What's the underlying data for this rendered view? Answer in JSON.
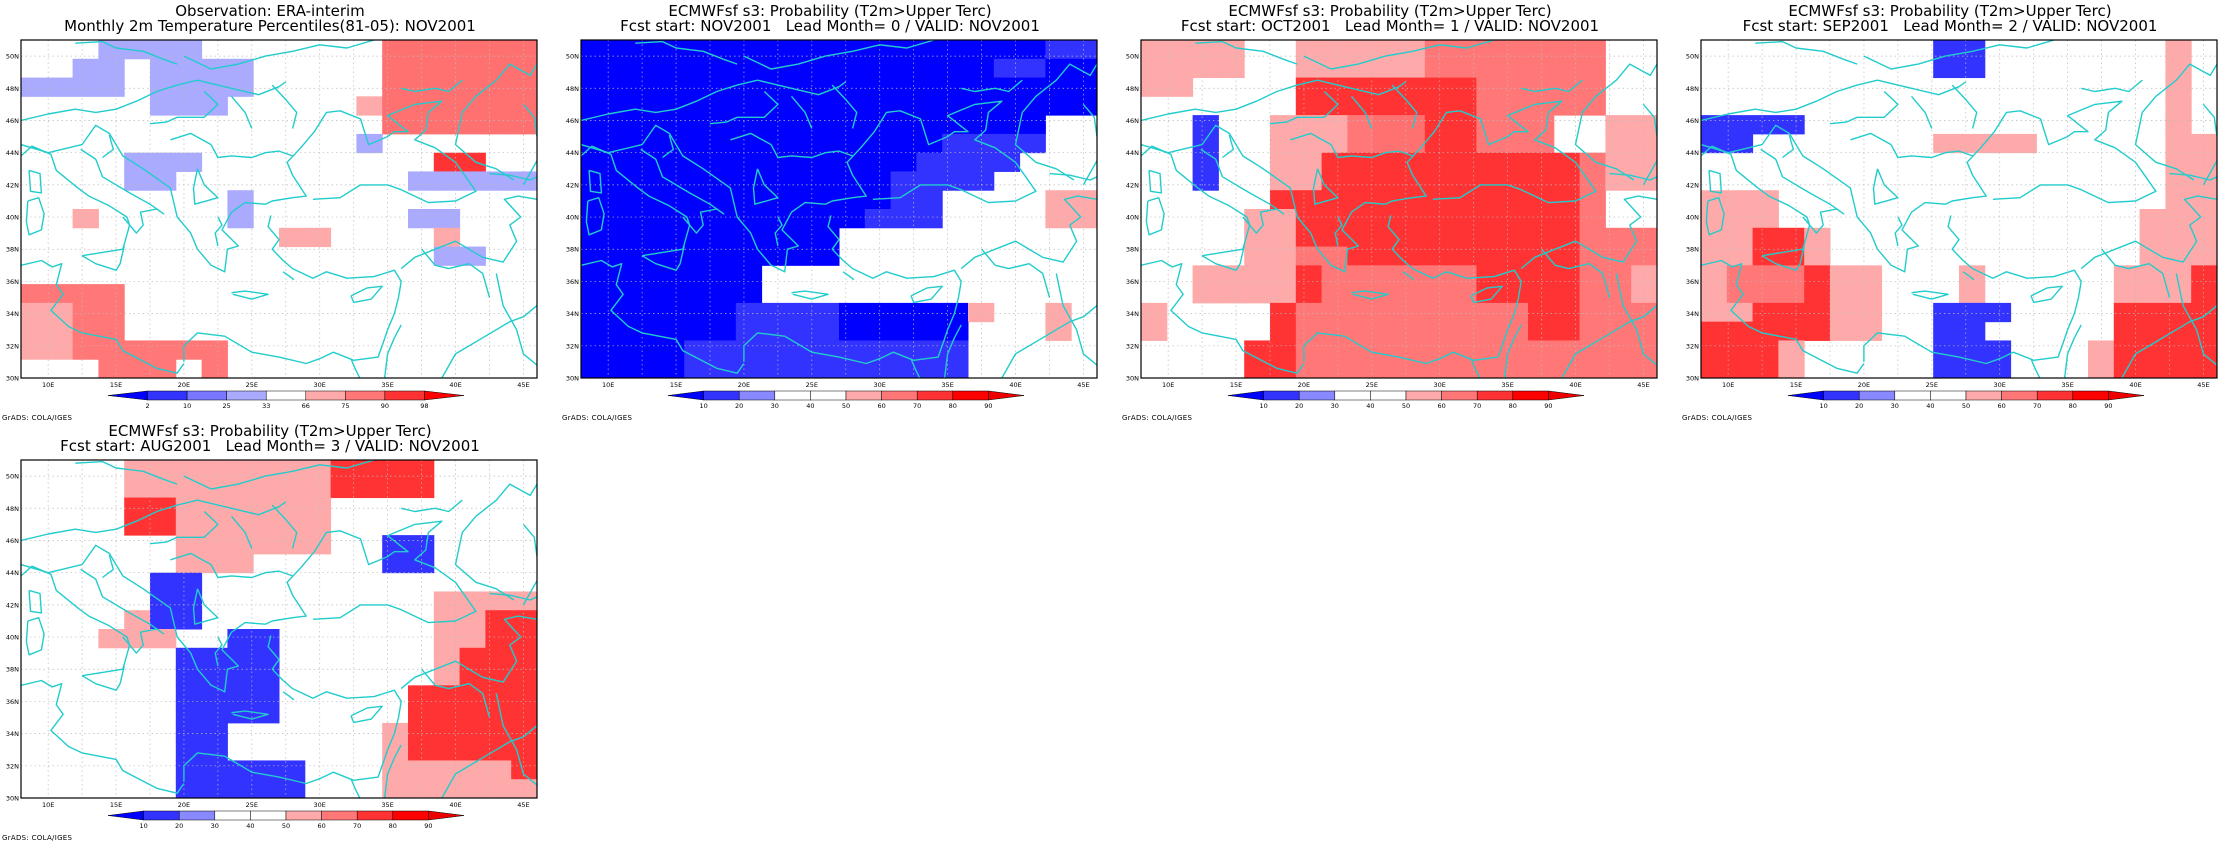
{
  "lat_labels": [
    "30N",
    "32N",
    "34N",
    "36N",
    "38N",
    "40N",
    "42N",
    "44N",
    "46N",
    "48N",
    "50N"
  ],
  "lon_labels": [
    "10E",
    "15E",
    "20E",
    "25E",
    "30E",
    "35E",
    "40E",
    "45E"
  ],
  "coast_color": "#22cccc",
  "grads_credit": "GrADS: COLA/IGES",
  "panels": [
    {
      "id": "obs",
      "title1": "Observation: ERA-interim",
      "title2": "Monthly 2m Temperature Percentiles(81-05): NOV2001",
      "legend_labels": [
        "2",
        "10",
        "25",
        "33",
        "66",
        "75",
        "90",
        "98"
      ],
      "legend_colors": [
        "#0000ff",
        "#3333ff",
        "#7777ff",
        "#aaaaff",
        "#ffffff",
        "#ffaaaa",
        "#ff7777",
        "#ff3333",
        "#ff0000"
      ],
      "rows": [
        "...BBBB.......RRRRRR",
        "..BB.BBBB.....RRRRRR",
        "BBBB.BBBB.....RRRRRR",
        ".....BBB.....SRRRRRR",
        "..............RRRRRR",
        ".............B......",
        "....BBB.........LL..",
        "....BB.........BBBBB",
        "........B...........",
        "..S.....B......BB...",
        "..........SS....S...",
        "................BB..",
        "....................",
        "TTTT................",
        "SSTT................",
        "SSTT................",
        "SSTTTTTT............",
        "...TTT.T............"
      ]
    },
    {
      "id": "lead0",
      "title1": "ECMWFsf s3: Probability (T2m>Upper Terc)",
      "title2": "Fcst start: NOV2001   Lead Month= 0 / VALID: NOV2001",
      "legend_labels": [
        "10",
        "20",
        "30",
        "40",
        "50",
        "60",
        "70",
        "80",
        "90"
      ],
      "legend_colors": [
        "#0000ff",
        "#3333ff",
        "#8888ff",
        "#ffffff",
        "#ffffff",
        "#ffaaaa",
        "#ff7777",
        "#ff3333",
        "#ff0000",
        "#ee0000"
      ],
      "rows": [
        "XXXXXXXXXXXXXXXXXXYY",
        "XXXXXXXXXXXXXXXXYYXX",
        "XXXXXXXXXXXXXXXXXXXX",
        "XXXXXXXXXXXXXXXXXXXX",
        "XXXXXXXXXXXXXXXXXX..",
        "XXXXXXXXXXXXXXYYYY..",
        "XXXXXXXXXXXXXYYYY...",
        "XXXXXXXXXXXXYYYY....",
        "XXXXXXXXXXXXYY....SS",
        "XXXXXXXXXXXYYY....SS",
        "XXXXXXXXXX..........",
        "XXXXXXXXXX..........",
        "XXXXXXX.............",
        "XXXXXXX.............",
        "XXXXXXYYYYXXXXXS..S.",
        "XXXXXXYYYYXXXXX...S.",
        "XXXXYYYYYYYYYYY.....",
        "XXXXYYYYYYYYYYY....."
      ]
    },
    {
      "id": "lead1",
      "title1": "ECMWFsf s3: Probability (T2m>Upper Terc)",
      "title2": "Fcst start: OCT2001   Lead Month= 1 / VALID: NOV2001",
      "legend_labels": [
        "10",
        "20",
        "30",
        "40",
        "50",
        "60",
        "70",
        "80",
        "90"
      ],
      "legend_colors": [
        "#0000ff",
        "#3333ff",
        "#8888ff",
        "#ffffff",
        "#ffffff",
        "#ffaaaa",
        "#ff7777",
        "#ff3333",
        "#ff0000",
        "#ee0000"
      ],
      "rows": [
        "SSSS..SSSSSTTTTTTT..",
        "SSSS..SSSSSTTTTTTT..",
        "SS....LLLLLLLTTTTT..",
        "......LLLLLLLTTTTT..",
        "..Y..SSSTRRLLTTT..SS",
        "..Y..SSSTRRLLTTT..SS",
        "..Y..SSLLLLLLLLLLTSS",
        "..Y..SSLLLLLLLLLLTSS",
        ".....LLLLLLLLLLLLT..",
        "....SSLLLLLLLLLLLT..",
        "....SSLLLLLLLLLLLTTT",
        "....SSTTLLLLLLLLLTTT",
        "..SSSSLTTTTTTLLLLTTS",
        "..SSSSLTTTTTTLLLLTTS",
        "S....LTTTTTTTTTLLTTT",
        "S....LTTTTTTTTTLLTTT",
        "....LLTTTTTTTTTTTTTT",
        "....LLTTTTTTTTTTTTTT"
      ]
    },
    {
      "id": "lead2",
      "title1": "ECMWFsf s3: Probability (T2m>Upper Terc)",
      "title2": "Fcst start: SEP2001   Lead Month= 2 / VALID: NOV2001",
      "legend_labels": [
        "10",
        "20",
        "30",
        "40",
        "50",
        "60",
        "70",
        "80",
        "90"
      ],
      "legend_colors": [
        "#0000ff",
        "#3333ff",
        "#8888ff",
        "#ffffff",
        "#ffffff",
        "#ffaaaa",
        "#ff7777",
        "#ff3333",
        "#ff0000",
        "#ee0000"
      ],
      "rows": [
        ".........YY.......S.",
        ".........YY.......S.",
        "..................S.",
        "..................S.",
        "YYYY..............S.",
        "YY.......SSSS.....SS",
        "..................SS",
        "..................SS",
        "SSS...............SS",
        "SSS..............SSS",
        "SSLLS............SSS",
        "SSLLS............SSS",
        "STTTLSS...S.....SSSL",
        "STTTLSS...S.....SSSL",
        "SSLLLSS..YYY....LLLL",
        "LLLLLSS..YY.....LLLL",
        "LLLS.....YYY...SLLLL",
        "LLLS.....YYY...SLLLL"
      ]
    },
    {
      "id": "lead3",
      "title1": "ECMWFsf s3: Probability (T2m>Upper Terc)",
      "title2": "Fcst start: AUG2001   Lead Month= 3 / VALID: NOV2001",
      "legend_labels": [
        "10",
        "20",
        "30",
        "40",
        "50",
        "60",
        "70",
        "80",
        "90"
      ],
      "legend_colors": [
        "#0000ff",
        "#3333ff",
        "#8888ff",
        "#ffffff",
        "#ffffff",
        "#ffaaaa",
        "#ff7777",
        "#ff3333",
        "#ff0000",
        "#ee0000"
      ],
      "rows": [
        "....SSSSSSSSLLLL....",
        "....SSSSSSSSLLLL....",
        "....LLSSSSSS........",
        "....LLSSSSSS........",
        "......SSSSSS..YY....",
        "......SSS.....YY....",
        ".....YY.............",
        ".....YY.........SSSS",
        "....SYY.........SSLL",
        "...SSS..YY......SSLL",
        "......YYYY......SLLL",
        "......YYYY......SLLL",
        "......YYYY.....LLLLL",
        "......YYYY.....LLLLL",
        "......YY......SLLLLL",
        "......YY......SLLLLL",
        "......YYYYY...SSSSSL",
        "......YYYYY...SSSSSS"
      ]
    }
  ]
}
